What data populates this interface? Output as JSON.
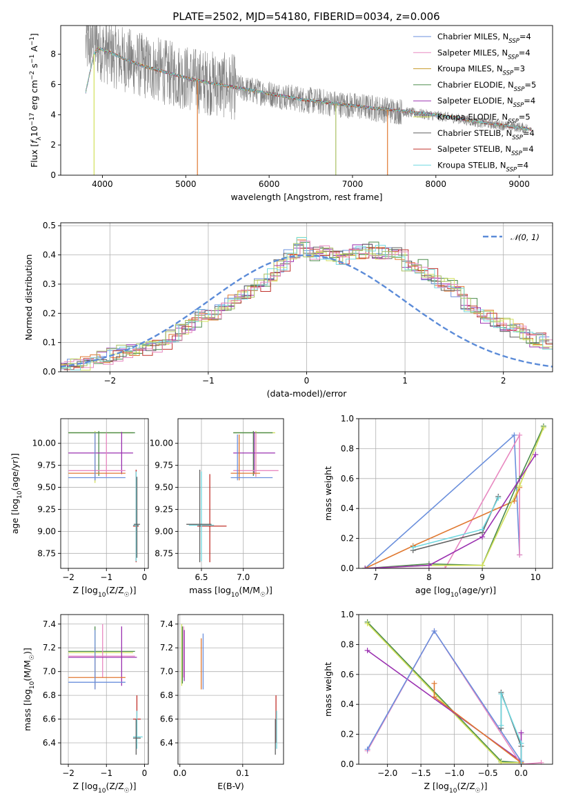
{
  "chart_data": [
    {
      "id": "spectrum",
      "type": "line",
      "title": "PLATE=2502, MJD=54180, FIBERID=0034, z=0.006",
      "xlabel": "wavelength [Angstrom, rest frame]",
      "ylabel": "Flux [fλ10⁻¹⁷ erg cm⁻² s⁻¹ A⁻¹]",
      "xlim": [
        3500,
        9400
      ],
      "ylim": [
        0,
        9.9
      ],
      "xticks": [
        4000,
        5000,
        6000,
        7000,
        8000,
        9000
      ],
      "yticks": [
        0,
        2,
        4,
        6,
        8
      ],
      "grid": false,
      "legend_position": "top-right",
      "observed": {
        "color": "#808080",
        "x": [
          3800,
          3900,
          4000,
          4150,
          4300,
          4500,
          4700,
          4900,
          5100,
          5300,
          5500,
          5800,
          6100,
          6400,
          6700,
          7000,
          7300,
          7600,
          7900,
          8200,
          8500,
          8800,
          9100
        ],
        "y": [
          8.6,
          8.8,
          8.3,
          7.9,
          7.6,
          7.2,
          6.9,
          6.6,
          6.3,
          6.1,
          5.9,
          5.6,
          5.3,
          5.0,
          4.8,
          4.6,
          4.4,
          4.2,
          4.0,
          3.8,
          3.5,
          3.3,
          3.1
        ]
      },
      "model": {
        "x": [
          3800,
          3850,
          3900,
          3950,
          4000,
          4100,
          4300,
          4500,
          4700,
          4900,
          5100,
          5300,
          5500,
          5800,
          6100,
          6400,
          6700,
          7000,
          7300,
          7600,
          7900,
          8200,
          8500,
          8800,
          9100
        ],
        "y": [
          5.5,
          6.8,
          8.0,
          8.4,
          8.3,
          8.1,
          7.6,
          7.2,
          6.9,
          6.6,
          6.3,
          6.1,
          5.9,
          5.6,
          5.3,
          5.0,
          4.8,
          4.6,
          4.4,
          4.25,
          4.05,
          3.85,
          3.55,
          3.3,
          3.05
        ]
      },
      "series": [
        {
          "name": "Chabrier MILES, N",
          "sub": "SSP",
          "suffix": "=4",
          "color": "#6a8fdc"
        },
        {
          "name": "Salpeter MILES, N",
          "sub": "SSP",
          "suffix": "=4",
          "color": "#e888c0"
        },
        {
          "name": "Kroupa MILES, N",
          "sub": "SSP",
          "suffix": "=3",
          "color": "#c79a2a"
        },
        {
          "name": "Chabrier ELODIE, N",
          "sub": "SSP",
          "suffix": "=5",
          "color": "#4a8a4a"
        },
        {
          "name": "Salpeter ELODIE, N",
          "sub": "SSP",
          "suffix": "=4",
          "color": "#9a30b0"
        },
        {
          "name": "Kroupa ELODIE, N",
          "sub": "SSP",
          "suffix": "=5",
          "color": "#d2e05a"
        },
        {
          "name": "Chabrier STELIB, N",
          "sub": "SSP",
          "suffix": "=4",
          "color": "#606060"
        },
        {
          "name": "Salpeter STELIB, N",
          "sub": "SSP",
          "suffix": "=4",
          "color": "#c0302a"
        },
        {
          "name": "Kroupa STELIB, N",
          "sub": "SSP",
          "suffix": "=4",
          "color": "#70d8e0"
        }
      ],
      "masked_drops": [
        {
          "x": 3900,
          "color": "#d2e05a"
        },
        {
          "x": 5140,
          "color": "#e07830"
        },
        {
          "x": 6800,
          "color": "#a8c060"
        },
        {
          "x": 7420,
          "color": "#e07830"
        }
      ]
    },
    {
      "id": "residuals",
      "type": "line",
      "xlabel": "(data-model)/error",
      "ylabel": "Normed distribution",
      "xlim": [
        -2.5,
        2.5
      ],
      "ylim": [
        0,
        0.51
      ],
      "xticks": [
        -2,
        -1,
        0,
        1,
        2
      ],
      "yticks": [
        0.0,
        0.1,
        0.2,
        0.3,
        0.4,
        0.5
      ],
      "grid": true,
      "legend_position": "top-right",
      "gaussian": {
        "name": "𝒩(0, 1)",
        "color": "#5b8bd8",
        "mean": 0,
        "std": 1
      },
      "bin_edges_range": [
        -2.5,
        2.5
      ],
      "bin_width": 0.1,
      "histogram_reference": [
        0.02,
        0.025,
        0.03,
        0.04,
        0.05,
        0.06,
        0.07,
        0.08,
        0.08,
        0.09,
        0.1,
        0.12,
        0.15,
        0.16,
        0.19,
        0.2,
        0.22,
        0.24,
        0.26,
        0.28,
        0.3,
        0.33,
        0.36,
        0.4,
        0.44,
        0.4,
        0.41,
        0.4,
        0.39,
        0.4,
        0.41,
        0.42,
        0.41,
        0.4,
        0.4,
        0.37,
        0.36,
        0.33,
        0.31,
        0.3,
        0.27,
        0.23,
        0.21,
        0.19,
        0.17,
        0.16,
        0.14,
        0.12,
        0.11,
        0.1
      ],
      "series_colors": [
        "#6a8fdc",
        "#e07830",
        "#4a8a4a",
        "#9a30b0",
        "#d2e05a",
        "#c0302a",
        "#606060",
        "#70d8e0",
        "#e888c0",
        "#a8c060"
      ]
    },
    {
      "id": "age_vs_Z",
      "type": "scatter",
      "xlabel": "Z [log10(Z/Z☉)]",
      "ylabel": "age  [log10(age/yr)]",
      "xlim": [
        -2.2,
        0.1
      ],
      "ylim": [
        8.58,
        10.28
      ],
      "xticks": [
        -2,
        -1,
        0
      ],
      "yticks": [
        8.75,
        9.0,
        9.25,
        9.5,
        9.75,
        10.0
      ],
      "grid": true,
      "points": [
        {
          "x": -1.3,
          "y": 10.12,
          "xlo": -2.0,
          "xhi": -0.3,
          "ylo": 9.55,
          "yhi": 10.14,
          "color": "#d2e05a"
        },
        {
          "x": -1.2,
          "y": 10.12,
          "xlo": -2.0,
          "xhi": -0.25,
          "ylo": 9.63,
          "yhi": 10.14,
          "color": "#4a8a4a"
        },
        {
          "x": -0.6,
          "y": 9.89,
          "xlo": -2.0,
          "xhi": -0.3,
          "ylo": 9.65,
          "yhi": 10.13,
          "color": "#9a30b0"
        },
        {
          "x": -1.0,
          "y": 9.69,
          "xlo": -2.0,
          "xhi": -0.5,
          "ylo": 9.62,
          "yhi": 10.12,
          "color": "#e888c0"
        },
        {
          "x": -1.3,
          "y": 9.66,
          "xlo": -2.0,
          "xhi": -0.5,
          "ylo": 9.58,
          "yhi": 10.12,
          "color": "#e07830"
        },
        {
          "x": -1.3,
          "y": 9.61,
          "xlo": -2.0,
          "xhi": -0.5,
          "ylo": 9.58,
          "yhi": 10.12,
          "color": "#6a8fdc"
        },
        {
          "x": -0.22,
          "y": 9.06,
          "xlo": -0.3,
          "xhi": -0.15,
          "ylo": 8.65,
          "yhi": 9.7,
          "color": "#c0302a"
        },
        {
          "x": -0.22,
          "y": 9.07,
          "xlo": -0.3,
          "xhi": -0.15,
          "ylo": 8.66,
          "yhi": 9.68,
          "color": "#70d8e0"
        },
        {
          "x": -0.2,
          "y": 9.08,
          "xlo": -0.28,
          "xhi": -0.12,
          "ylo": 8.7,
          "yhi": 9.62,
          "color": "#606060"
        }
      ]
    },
    {
      "id": "age_vs_mass",
      "type": "scatter",
      "xlabel": "mass [log10(M/M☉)]",
      "ylabel": "",
      "xlim": [
        6.22,
        7.48
      ],
      "ylim": [
        8.58,
        10.28
      ],
      "xticks": [
        6.5,
        7.0
      ],
      "yticks": [
        8.75,
        9.0,
        9.25,
        9.5,
        9.75,
        10.0
      ],
      "grid": true,
      "points": [
        {
          "x": 7.15,
          "y": 10.12,
          "xlo": 6.88,
          "xhi": 7.38,
          "ylo": 9.62,
          "yhi": 10.14,
          "color": "#d2e05a"
        },
        {
          "x": 7.12,
          "y": 10.12,
          "xlo": 6.88,
          "xhi": 7.35,
          "ylo": 9.63,
          "yhi": 10.14,
          "color": "#4a8a4a"
        },
        {
          "x": 7.13,
          "y": 9.89,
          "xlo": 6.88,
          "xhi": 7.38,
          "ylo": 9.65,
          "yhi": 10.13,
          "color": "#9a30b0"
        },
        {
          "x": 7.15,
          "y": 9.69,
          "xlo": 6.88,
          "xhi": 7.42,
          "ylo": 9.62,
          "yhi": 10.12,
          "color": "#e888c0"
        },
        {
          "x": 6.95,
          "y": 9.66,
          "xlo": 6.85,
          "xhi": 7.2,
          "ylo": 9.58,
          "yhi": 10.1,
          "color": "#e07830"
        },
        {
          "x": 6.93,
          "y": 9.61,
          "xlo": 6.85,
          "xhi": 7.35,
          "ylo": 9.58,
          "yhi": 10.1,
          "color": "#6a8fdc"
        },
        {
          "x": 6.6,
          "y": 9.06,
          "xlo": 6.45,
          "xhi": 6.8,
          "ylo": 8.65,
          "yhi": 9.65,
          "color": "#c0302a"
        },
        {
          "x": 6.5,
          "y": 9.07,
          "xlo": 6.35,
          "xhi": 6.65,
          "ylo": 8.66,
          "yhi": 9.68,
          "color": "#70d8e0"
        },
        {
          "x": 6.48,
          "y": 9.08,
          "xlo": 6.32,
          "xhi": 6.62,
          "ylo": 8.65,
          "yhi": 9.7,
          "color": "#606060"
        }
      ]
    },
    {
      "id": "massweight_vs_age",
      "type": "line",
      "xlabel": "age  [log10(age/yr)]",
      "ylabel": "mass weight",
      "xlim": [
        6.68,
        10.32
      ],
      "ylim": [
        0,
        1.0
      ],
      "xticks": [
        7,
        8,
        9,
        10
      ],
      "yticks": [
        0.0,
        0.2,
        0.4,
        0.6,
        0.8,
        1.0
      ],
      "grid": true,
      "series": [
        {
          "color": "#6a8fdc",
          "x": [
            6.8,
            9.6,
            9.7
          ],
          "y": [
            0.0,
            0.89,
            0.09
          ]
        },
        {
          "color": "#e888c0",
          "x": [
            6.8,
            8.3,
            9.7,
            9.7
          ],
          "y": [
            0.0,
            0.0,
            0.89,
            0.09
          ]
        },
        {
          "color": "#e07830",
          "x": [
            6.8,
            7.7,
            9.6,
            9.7
          ],
          "y": [
            0.0,
            0.15,
            0.45,
            0.54
          ]
        },
        {
          "color": "#4a8a4a",
          "x": [
            6.8,
            8.0,
            9.0,
            9.7,
            10.15
          ],
          "y": [
            0.0,
            0.03,
            0.02,
            0.6,
            0.95
          ]
        },
        {
          "color": "#d2e05a",
          "x": [
            6.8,
            8.0,
            9.0,
            9.7,
            10.15
          ],
          "y": [
            0.0,
            0.02,
            0.02,
            0.55,
            0.94
          ]
        },
        {
          "color": "#9a30b0",
          "x": [
            6.8,
            8.0,
            9.0,
            10.0
          ],
          "y": [
            0.0,
            0.02,
            0.21,
            0.76
          ]
        },
        {
          "color": "#606060",
          "x": [
            7.7,
            9.0,
            9.3
          ],
          "y": [
            0.12,
            0.24,
            0.48
          ]
        },
        {
          "color": "#70d8e0",
          "x": [
            7.7,
            9.0,
            9.3
          ],
          "y": [
            0.14,
            0.26,
            0.47
          ]
        }
      ]
    },
    {
      "id": "mass_vs_Z",
      "type": "scatter",
      "xlabel": "Z [log10(Z/Z☉)]",
      "ylabel": "mass [log10(M/M☉)]",
      "xlim": [
        -2.2,
        0.1
      ],
      "ylim": [
        6.22,
        7.48
      ],
      "xticks": [
        -2,
        -1,
        0
      ],
      "yticks": [
        6.4,
        6.6,
        6.8,
        7.0,
        7.2,
        7.4
      ],
      "grid": true,
      "points": [
        {
          "x": -1.3,
          "y": 7.17,
          "xlo": -2.0,
          "xhi": -0.25,
          "ylo": 6.88,
          "yhi": 7.38,
          "color": "#4a8a4a"
        },
        {
          "x": -1.3,
          "y": 7.16,
          "xlo": -2.0,
          "xhi": -0.3,
          "ylo": 6.88,
          "yhi": 7.35,
          "color": "#d2e05a"
        },
        {
          "x": -1.1,
          "y": 7.13,
          "xlo": -2.0,
          "xhi": -0.25,
          "ylo": 6.95,
          "yhi": 7.4,
          "color": "#e888c0"
        },
        {
          "x": -0.6,
          "y": 7.12,
          "xlo": -2.0,
          "xhi": -0.2,
          "ylo": 6.88,
          "yhi": 7.38,
          "color": "#9a30b0"
        },
        {
          "x": -1.3,
          "y": 6.95,
          "xlo": -2.0,
          "xhi": -0.5,
          "ylo": 6.85,
          "yhi": 7.2,
          "color": "#e07830"
        },
        {
          "x": -1.3,
          "y": 6.91,
          "xlo": -2.0,
          "xhi": -0.5,
          "ylo": 6.85,
          "yhi": 7.35,
          "color": "#6a8fdc"
        },
        {
          "x": -0.2,
          "y": 6.6,
          "xlo": -0.3,
          "xhi": -0.1,
          "ylo": 6.45,
          "yhi": 6.8,
          "color": "#c0302a"
        },
        {
          "x": -0.2,
          "y": 6.45,
          "xlo": -0.3,
          "xhi": -0.05,
          "ylo": 6.35,
          "yhi": 6.67,
          "color": "#70d8e0"
        },
        {
          "x": -0.22,
          "y": 6.44,
          "xlo": -0.3,
          "xhi": -0.1,
          "ylo": 6.3,
          "yhi": 6.6,
          "color": "#606060"
        }
      ]
    },
    {
      "id": "mass_vs_ebv",
      "type": "scatter",
      "xlabel": "E(B-V)",
      "ylabel": "",
      "xlim": [
        -0.003,
        0.165
      ],
      "ylim": [
        6.22,
        7.48
      ],
      "xticks": [
        0.0,
        0.1
      ],
      "yticks": [
        6.4,
        6.6,
        6.8,
        7.0,
        7.2,
        7.4
      ],
      "grid": true,
      "points": [
        {
          "x": 0.003,
          "y": 7.17,
          "ylo": 6.88,
          "yhi": 7.4,
          "color": "#d2e05a"
        },
        {
          "x": 0.004,
          "y": 7.15,
          "ylo": 6.9,
          "yhi": 7.38,
          "color": "#4a8a4a"
        },
        {
          "x": 0.006,
          "y": 7.13,
          "ylo": 6.95,
          "yhi": 7.38,
          "color": "#e888c0"
        },
        {
          "x": 0.007,
          "y": 7.12,
          "ylo": 6.92,
          "yhi": 7.35,
          "color": "#9a30b0"
        },
        {
          "x": 0.034,
          "y": 7.07,
          "ylo": 6.85,
          "yhi": 7.28,
          "color": "#e07830"
        },
        {
          "x": 0.037,
          "y": 7.07,
          "ylo": 6.85,
          "yhi": 7.32,
          "color": "#6a8fdc"
        },
        {
          "x": 0.153,
          "y": 6.6,
          "ylo": 6.4,
          "yhi": 6.8,
          "color": "#c0302a"
        },
        {
          "x": 0.154,
          "y": 6.5,
          "ylo": 6.35,
          "yhi": 6.67,
          "color": "#70d8e0"
        },
        {
          "x": 0.152,
          "y": 6.44,
          "ylo": 6.3,
          "yhi": 6.6,
          "color": "#606060"
        }
      ]
    },
    {
      "id": "massweight_vs_Z",
      "type": "line",
      "xlabel": "Z [log10(Z/Z☉)]",
      "ylabel": "mass weight",
      "xlim": [
        -2.43,
        0.47
      ],
      "ylim": [
        0,
        1.0
      ],
      "xticks": [
        -2.0,
        -1.5,
        -1.0,
        -0.5,
        0.0
      ],
      "yticks": [
        0.0,
        0.2,
        0.4,
        0.6,
        0.8,
        1.0
      ],
      "grid": true,
      "series": [
        {
          "color": "#4a8a4a",
          "x": [
            -2.3,
            -0.3,
            0.0
          ],
          "y": [
            0.95,
            0.02,
            0.01
          ]
        },
        {
          "color": "#d2e05a",
          "x": [
            -2.3,
            -0.3,
            0.0
          ],
          "y": [
            0.94,
            0.01,
            0.01
          ]
        },
        {
          "color": "#9a30b0",
          "x": [
            -2.3,
            0.0,
            0.0
          ],
          "y": [
            0.76,
            0.02,
            0.21
          ]
        },
        {
          "color": "#e888c0",
          "x": [
            -2.3,
            -1.3,
            0.0,
            0.3
          ],
          "y": [
            0.09,
            0.89,
            0.0,
            0.01
          ]
        },
        {
          "color": "#6a8fdc",
          "x": [
            -2.3,
            -1.3,
            0.0
          ],
          "y": [
            0.1,
            0.89,
            0.02
          ]
        },
        {
          "color": "#e07830",
          "x": [
            -1.3,
            -1.3,
            0.0
          ],
          "y": [
            0.54,
            0.45,
            0.01
          ]
        },
        {
          "color": "#606060",
          "x": [
            -0.3,
            -0.3,
            0.0,
            0.0
          ],
          "y": [
            0.24,
            0.48,
            0.12,
            0.0
          ]
        },
        {
          "color": "#70d8e0",
          "x": [
            -0.3,
            -0.3,
            0.0,
            0.0
          ],
          "y": [
            0.26,
            0.47,
            0.14,
            0.0
          ]
        }
      ]
    }
  ]
}
